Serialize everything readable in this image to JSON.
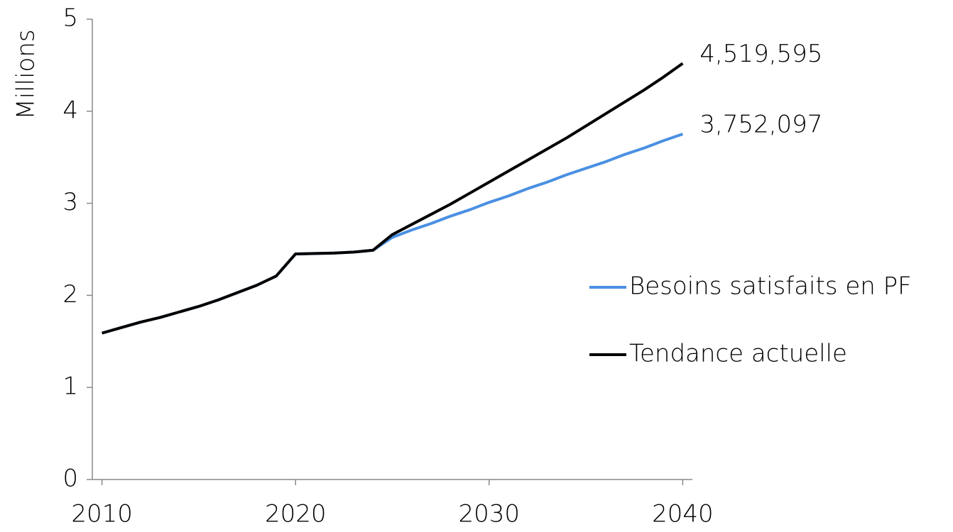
{
  "chart_data": {
    "type": "line",
    "y_label": "Millions",
    "x": [
      2010,
      2011,
      2012,
      2013,
      2014,
      2015,
      2016,
      2017,
      2018,
      2019,
      2020,
      2021,
      2022,
      2023,
      2024,
      2025,
      2026,
      2027,
      2028,
      2029,
      2030,
      2031,
      2032,
      2033,
      2034,
      2035,
      2036,
      2037,
      2038,
      2039,
      2040
    ],
    "series": [
      {
        "name": "Besoins satisfaits en PF",
        "color": "#4a90e2",
        "values": [
          1.59,
          1.65,
          1.71,
          1.76,
          1.82,
          1.88,
          1.95,
          2.03,
          2.11,
          2.21,
          2.45,
          2.455,
          2.46,
          2.47,
          2.49,
          2.63,
          2.71,
          2.78,
          2.86,
          2.93,
          3.01,
          3.08,
          3.16,
          3.23,
          3.31,
          3.38,
          3.45,
          3.53,
          3.6,
          3.68,
          3.752097
        ],
        "value_labels": [
          null,
          null,
          null,
          null,
          null,
          null,
          null,
          null,
          null,
          null,
          null,
          null,
          null,
          null,
          null,
          null,
          null,
          null,
          null,
          null,
          null,
          null,
          null,
          null,
          null,
          null,
          null,
          null,
          null,
          null,
          "3,752,097"
        ]
      },
      {
        "name": "Tendance actuelle",
        "color": "#000000",
        "values": [
          1.59,
          1.65,
          1.71,
          1.76,
          1.82,
          1.88,
          1.95,
          2.03,
          2.11,
          2.21,
          2.45,
          2.455,
          2.46,
          2.47,
          2.49,
          2.66,
          2.77,
          2.88,
          2.99,
          3.11,
          3.23,
          3.35,
          3.47,
          3.59,
          3.71,
          3.84,
          3.97,
          4.1,
          4.23,
          4.37,
          4.519595
        ],
        "value_labels": [
          null,
          null,
          null,
          null,
          null,
          null,
          null,
          null,
          null,
          null,
          null,
          null,
          null,
          null,
          null,
          null,
          null,
          null,
          null,
          null,
          null,
          null,
          null,
          null,
          null,
          null,
          null,
          null,
          null,
          null,
          "4,519,595"
        ]
      }
    ],
    "xlim": [
      2009.5,
      2040.5
    ],
    "xticks": [
      2010,
      2020,
      2030,
      2040
    ],
    "ylim": [
      0,
      5
    ],
    "yticks": [
      0,
      1,
      2,
      3,
      4,
      5
    ],
    "legend": "right"
  }
}
